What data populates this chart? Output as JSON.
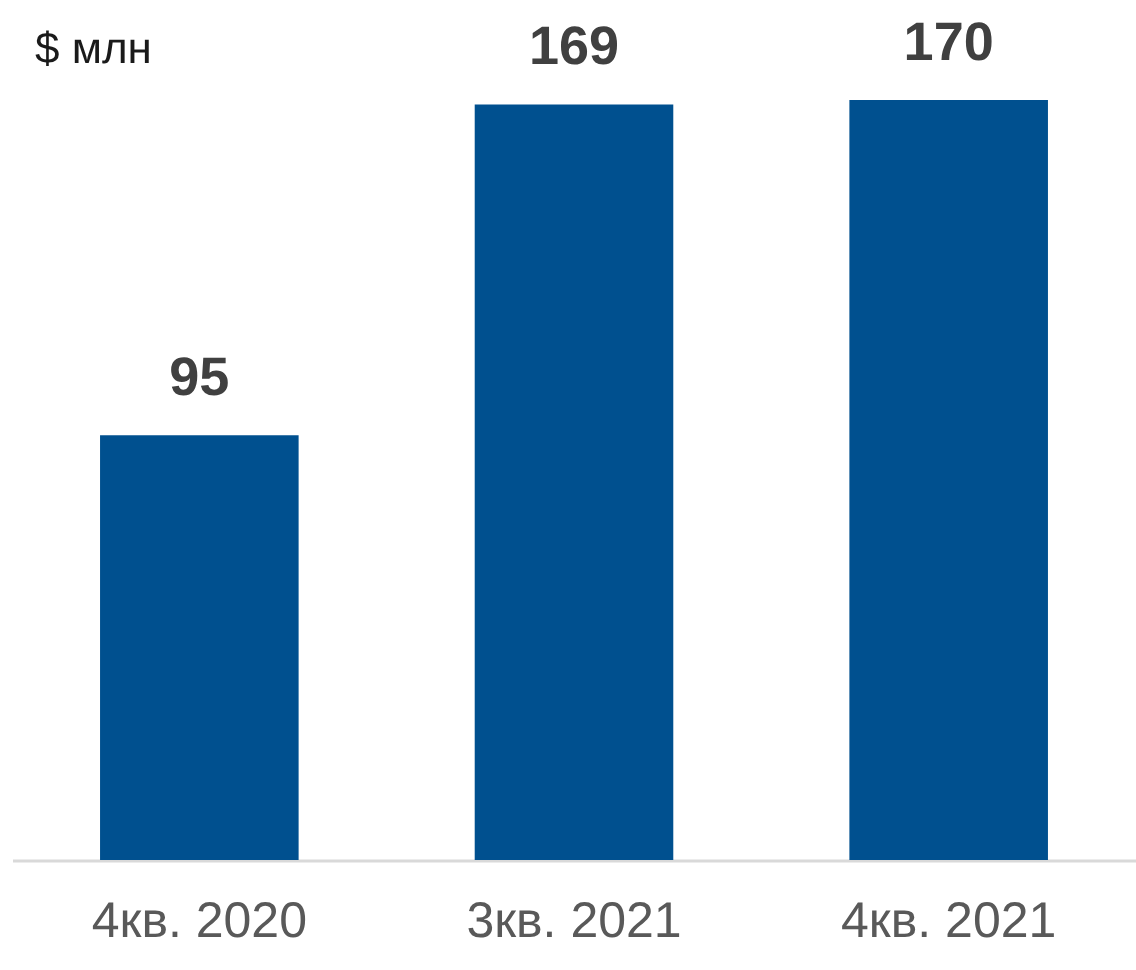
{
  "chart_data": {
    "type": "bar",
    "ylabel": "$ млн",
    "categories": [
      "4кв. 2020",
      "3кв. 2021",
      "4кв. 2021"
    ],
    "values": [
      95,
      169,
      170
    ],
    "color": "#00508f",
    "data_labels": true
  }
}
